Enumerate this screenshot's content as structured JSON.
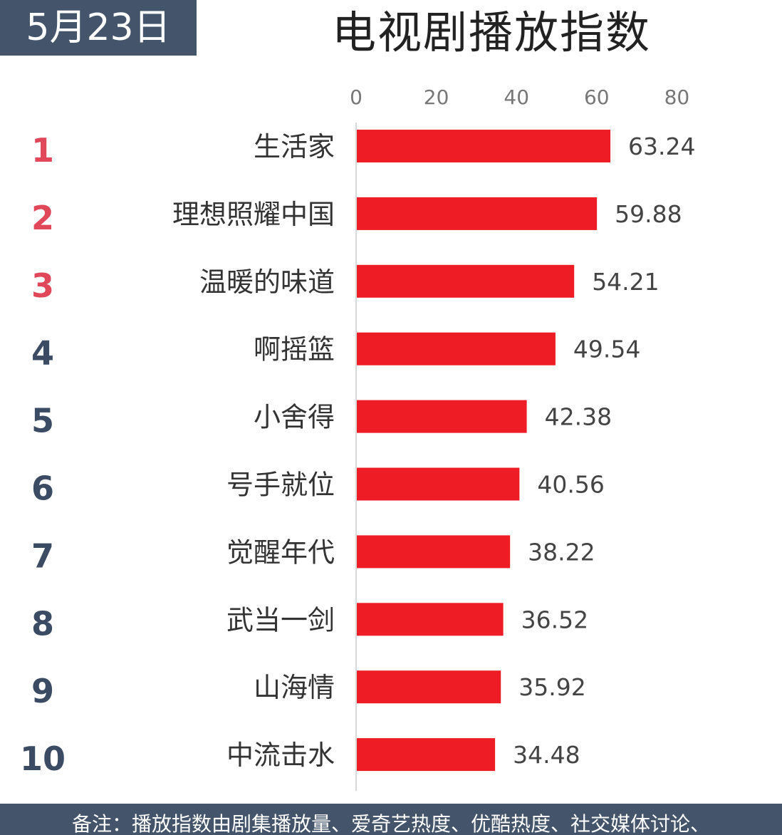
{
  "header": {
    "date": "5月23日",
    "title": "电视剧播放指数"
  },
  "colors": {
    "bar": "#ee1c25",
    "rank_top": "#e0485a",
    "rank_other": "#3a4b63",
    "badge_bg": "#44546a"
  },
  "footnote": "备注：播放指数由剧集播放量、爱奇艺热度、优酷热度、社交媒体讨论、",
  "chart_data": {
    "type": "bar",
    "orientation": "horizontal",
    "title": "电视剧播放指数",
    "xlim": [
      0,
      80
    ],
    "xticks": [
      "0",
      "20",
      "40",
      "60",
      "80"
    ],
    "grid": false,
    "ranks": [
      "1",
      "2",
      "3",
      "4",
      "5",
      "6",
      "7",
      "8",
      "9",
      "10"
    ],
    "categories": [
      "生活家",
      "理想照耀中国",
      "温暖的味道",
      "啊摇篮",
      "小舍得",
      "号手就位",
      "觉醒年代",
      "武当一剑",
      "山海情",
      "中流击水"
    ],
    "values": [
      63.24,
      59.88,
      54.21,
      49.54,
      42.38,
      40.56,
      38.22,
      36.52,
      35.92,
      34.48
    ],
    "value_labels": [
      "63.24",
      "59.88",
      "54.21",
      "49.54",
      "42.38",
      "40.56",
      "38.22",
      "36.52",
      "35.92",
      "34.48"
    ]
  }
}
